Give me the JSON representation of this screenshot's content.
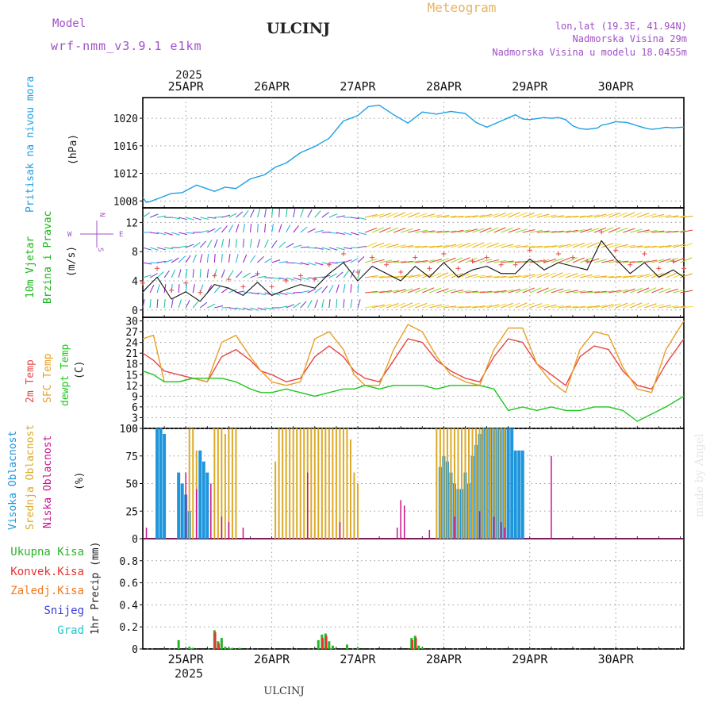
{
  "header": {
    "model_label": "Model",
    "model_name": "wrf-nmm_v3.9.1 e1km",
    "station": "ULCINJ",
    "product": "Meteogram",
    "coords": "lon,lat (19.3E, 41.94N)",
    "elevation": "Nadmorska Visina 29m",
    "model_elevation": "Nadmorska Visina u modelu 18.0455m"
  },
  "footer": {
    "station": "ULCINJ",
    "credit": "made by Angel"
  },
  "colors": {
    "pressure": "#1ea0e6",
    "wind_label": "#18b418",
    "temp2m": "#e84646",
    "sfc": "#e6a028",
    "dewpt": "#1ec81e",
    "high_cloud": "#1e96dc",
    "mid_cloud": "#dcaa28",
    "low_cloud": "#c8148c",
    "total_precip": "#28b428",
    "conv_precip": "#e83232",
    "frz_precip": "#f0781e",
    "snow": "#3c3cdc",
    "graupel": "#1ec8c8",
    "purple_text": "#a050c8",
    "product": "#e6b464"
  },
  "time_axis": {
    "top_year": "2025",
    "bottom_year": "2025",
    "days": [
      "25APR",
      "26APR",
      "27APR",
      "28APR",
      "29APR",
      "30APR"
    ]
  },
  "panel_labels": {
    "pressure": "Pritisak na nivou mora",
    "pressure_unit": "(hPa)",
    "wind_1": "10m Vjetar",
    "wind_2": "Brzina i Pravac",
    "wind_unit": "(m/s)",
    "compass": {
      "n": "N",
      "s": "S",
      "e": "E",
      "w": "W"
    },
    "temp_2m": "2m Temp",
    "temp_sfc": "SFC Temp",
    "temp_dew": "dewpt Temp",
    "temp_unit": "(C)",
    "cloud_high": "Visoka Oblacnost",
    "cloud_mid": "Srednja Oblacnost",
    "cloud_low": "Niska Oblacnost",
    "cloud_unit": "(%)",
    "precip_total": "Ukupna Kisa",
    "precip_conv": "Konvek.Kisa",
    "precip_frz": "Zaledj.Kisa",
    "precip_snow": "Snijeg",
    "precip_graupel": "Grad",
    "precip_unit": "1hr Precip (mm)"
  },
  "chart_data": [
    {
      "type": "line",
      "name": "pressure",
      "ylim": [
        1007,
        1023
      ],
      "yticks": [
        "1008",
        "1012",
        "1016",
        "1020"
      ],
      "x_hours": [
        0,
        1,
        2,
        5,
        8,
        11,
        15,
        20,
        23,
        26,
        30,
        34,
        37,
        40,
        44,
        48,
        52,
        56,
        60,
        63,
        66,
        70,
        74,
        78,
        82,
        86,
        90,
        93,
        96,
        100,
        104,
        106,
        108,
        112,
        114,
        116,
        118,
        120,
        122,
        124,
        127,
        128,
        130,
        132,
        135,
        137,
        138,
        140,
        142,
        144,
        146,
        148,
        150,
        151
      ],
      "values": [
        1008.5,
        1007.8,
        1007.9,
        1008.5,
        1009.1,
        1009.2,
        1010.3,
        1009.4,
        1010.0,
        1009.8,
        1011.2,
        1011.8,
        1012.9,
        1013.5,
        1015.0,
        1015.9,
        1017.1,
        1019.6,
        1020.4,
        1021.7,
        1021.9,
        1020.5,
        1019.3,
        1020.9,
        1020.6,
        1021.0,
        1020.7,
        1019.4,
        1018.7,
        1019.6,
        1020.5,
        1019.9,
        1019.8,
        1020.1,
        1020.0,
        1020.1,
        1019.8,
        1018.9,
        1018.5,
        1018.4,
        1018.6,
        1019.0,
        1019.2,
        1019.5,
        1019.4,
        1019.1,
        1018.9,
        1018.6,
        1018.4,
        1018.5,
        1018.7,
        1018.6,
        1018.7,
        1018.7
      ]
    },
    {
      "type": "line",
      "name": "wind",
      "ylim": [
        -1,
        14
      ],
      "yticks": [
        "0",
        "4",
        "8",
        "12"
      ],
      "x_hours": [
        0,
        4,
        8,
        12,
        16,
        20,
        24,
        28,
        32,
        36,
        40,
        44,
        48,
        52,
        56,
        60,
        64,
        68,
        72,
        76,
        80,
        84,
        88,
        92,
        96,
        100,
        104,
        108,
        112,
        116,
        120,
        124,
        128,
        132,
        136,
        140,
        144,
        148,
        151
      ],
      "values": [
        2.5,
        4.5,
        1.5,
        2.5,
        1.2,
        3.5,
        3.0,
        2.0,
        3.8,
        2.0,
        2.8,
        3.5,
        3.0,
        5.0,
        6.5,
        4.0,
        6.0,
        5.0,
        4.0,
        6.0,
        4.5,
        6.5,
        4.5,
        5.5,
        6.0,
        5.0,
        5.0,
        7.0,
        5.5,
        6.5,
        6.0,
        5.5,
        9.5,
        7.0,
        5.0,
        6.5,
        4.5,
        5.5,
        4.5
      ]
    },
    {
      "type": "line",
      "name": "temperature",
      "ylim": [
        0,
        31
      ],
      "yticks": [
        "0",
        "3",
        "6",
        "9",
        "12",
        "15",
        "18",
        "21",
        "24",
        "27",
        "30"
      ],
      "series": [
        {
          "name": "2m Temp",
          "x_hours": [
            0,
            3,
            6,
            10,
            14,
            18,
            22,
            26,
            30,
            33,
            36,
            40,
            44,
            48,
            52,
            56,
            59,
            62,
            66,
            70,
            74,
            78,
            82,
            86,
            90,
            94,
            98,
            102,
            106,
            110,
            114,
            118,
            122,
            126,
            130,
            134,
            138,
            142,
            146,
            151
          ],
          "values": [
            21,
            19,
            16,
            15,
            14,
            13,
            20,
            22,
            19,
            16,
            15,
            13,
            14,
            20,
            23,
            20,
            16,
            14,
            13,
            19,
            25,
            24,
            19,
            16,
            14,
            13,
            20,
            25,
            24,
            18,
            15,
            12,
            20,
            23,
            22,
            16,
            12,
            11,
            18,
            25
          ]
        },
        {
          "name": "SFC Temp",
          "x_hours": [
            0,
            3,
            6,
            10,
            14,
            18,
            22,
            26,
            30,
            33,
            36,
            40,
            44,
            48,
            52,
            56,
            59,
            62,
            66,
            70,
            74,
            78,
            82,
            86,
            90,
            94,
            98,
            102,
            106,
            110,
            114,
            118,
            122,
            126,
            130,
            134,
            138,
            142,
            146,
            151
          ],
          "values": [
            25,
            26,
            13,
            13,
            14,
            13,
            24,
            26,
            20,
            16,
            13,
            12,
            13,
            25,
            27,
            22,
            15,
            12,
            12,
            22,
            29,
            27,
            20,
            15,
            13,
            12,
            22,
            28,
            28,
            18,
            13,
            10,
            22,
            27,
            26,
            17,
            11,
            10,
            22,
            30
          ]
        },
        {
          "name": "dewpt Temp",
          "x_hours": [
            0,
            3,
            6,
            10,
            14,
            18,
            22,
            26,
            30,
            33,
            36,
            40,
            44,
            48,
            52,
            56,
            59,
            62,
            66,
            70,
            74,
            78,
            82,
            86,
            90,
            94,
            98,
            102,
            106,
            110,
            114,
            118,
            122,
            126,
            130,
            134,
            138,
            142,
            146,
            151
          ],
          "values": [
            16,
            15,
            13,
            13,
            14,
            14,
            14,
            13,
            11,
            10,
            10,
            11,
            10,
            9,
            10,
            11,
            11,
            12,
            11,
            12,
            12,
            12,
            11,
            12,
            12,
            12,
            11,
            5,
            6,
            5,
            6,
            5,
            5,
            6,
            6,
            5,
            2,
            4,
            6,
            9
          ]
        }
      ]
    },
    {
      "type": "bar",
      "name": "cloud_cover",
      "ylim": [
        0,
        100
      ],
      "yticks": [
        "0",
        "25",
        "50",
        "75",
        "100"
      ],
      "series": [
        {
          "name": "Visoka Oblacnost",
          "x_hours": [
            4,
            5,
            6,
            10,
            11,
            12,
            13,
            16,
            17,
            18,
            83,
            84,
            85,
            86,
            87,
            88,
            89,
            90,
            91,
            92,
            93,
            94,
            95,
            96,
            97,
            98,
            99,
            100,
            101,
            102,
            103,
            104,
            105,
            106
          ],
          "values": [
            100,
            100,
            95,
            60,
            50,
            40,
            25,
            80,
            70,
            60,
            65,
            75,
            70,
            60,
            50,
            45,
            45,
            60,
            50,
            75,
            85,
            95,
            100,
            100,
            100,
            100,
            100,
            100,
            100,
            100,
            100,
            80,
            80,
            80
          ]
        },
        {
          "name": "Srednja Oblacnost",
          "x_hours": [
            13,
            14,
            15,
            20,
            21,
            22,
            23,
            24,
            25,
            26,
            37,
            38,
            39,
            40,
            41,
            42,
            43,
            44,
            45,
            46,
            47,
            48,
            49,
            50,
            51,
            52,
            53,
            54,
            55,
            56,
            57,
            58,
            59,
            60,
            82,
            83,
            84,
            85,
            86,
            87,
            88,
            89,
            90,
            91,
            92,
            93,
            94,
            95,
            96,
            97,
            98,
            99,
            100,
            101
          ],
          "values": [
            100,
            100,
            80,
            100,
            100,
            100,
            95,
            100,
            100,
            100,
            70,
            100,
            100,
            100,
            100,
            100,
            100,
            100,
            100,
            100,
            100,
            100,
            100,
            100,
            100,
            100,
            100,
            100,
            100,
            100,
            100,
            90,
            60,
            50,
            100,
            100,
            100,
            100,
            100,
            100,
            100,
            100,
            100,
            100,
            100,
            100,
            100,
            100,
            100,
            100,
            100,
            100,
            100,
            100
          ]
        },
        {
          "name": "Niska Oblacnost",
          "x_hours": [
            1,
            12,
            15,
            19,
            22,
            24,
            28,
            46,
            55,
            71,
            72,
            73,
            80,
            87,
            94,
            98,
            100,
            101,
            114
          ],
          "values": [
            10,
            60,
            45,
            50,
            20,
            15,
            10,
            60,
            15,
            10,
            35,
            30,
            8,
            20,
            25,
            20,
            15,
            10,
            75
          ]
        }
      ]
    },
    {
      "type": "bar",
      "name": "precipitation",
      "ylim": [
        0,
        1.0
      ],
      "yticks": [
        "0",
        "0.2",
        "0.4",
        "0.6",
        "0.8"
      ],
      "series": [
        {
          "name": "Ukupna Kisa",
          "x_hours": [
            10,
            13,
            14,
            20,
            21,
            22,
            23,
            24,
            25,
            27,
            49,
            50,
            51,
            52,
            53,
            57,
            60,
            75,
            76,
            77,
            78
          ],
          "values": [
            0.08,
            0.02,
            0.01,
            0.17,
            0.07,
            0.1,
            0.02,
            0.01,
            0.01,
            0.01,
            0.08,
            0.13,
            0.14,
            0.07,
            0.03,
            0.04,
            0.01,
            0.1,
            0.12,
            0.03,
            0.01
          ]
        },
        {
          "name": "Konvek.Kisa",
          "x_hours": [
            20,
            21,
            50,
            51,
            75,
            76
          ],
          "values": [
            0.15,
            0.05,
            0.1,
            0.12,
            0.08,
            0.1
          ]
        }
      ]
    }
  ]
}
